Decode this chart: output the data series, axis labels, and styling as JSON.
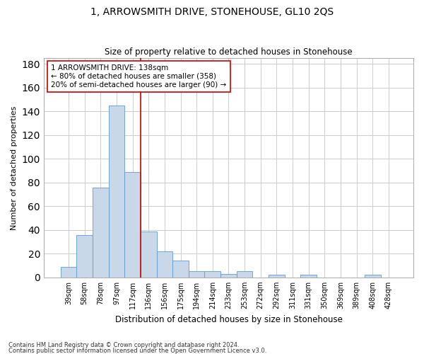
{
  "title": "1, ARROWSMITH DRIVE, STONEHOUSE, GL10 2QS",
  "subtitle": "Size of property relative to detached houses in Stonehouse",
  "xlabel": "Distribution of detached houses by size in Stonehouse",
  "ylabel": "Number of detached properties",
  "bar_color": "#c8d8e8",
  "bar_edge_color": "#5b9bd5",
  "vline_x": 4.5,
  "vline_color": "#cc0000",
  "annotation_text": "1 ARROWSMITH DRIVE: 138sqm\n← 80% of detached houses are smaller (358)\n20% of semi-detached houses are larger (90) →",
  "annotation_box_color": "#ffffff",
  "annotation_box_edge": "#cc0000",
  "categories": [
    "39sqm",
    "58sqm",
    "78sqm",
    "97sqm",
    "117sqm",
    "136sqm",
    "156sqm",
    "175sqm",
    "194sqm",
    "214sqm",
    "233sqm",
    "253sqm",
    "272sqm",
    "292sqm",
    "311sqm",
    "331sqm",
    "350sqm",
    "369sqm",
    "389sqm",
    "408sqm",
    "428sqm"
  ],
  "bar_heights": [
    9,
    36,
    76,
    145,
    89,
    39,
    22,
    14,
    5,
    5,
    3,
    5,
    0,
    2,
    0,
    2,
    0,
    0,
    0,
    2,
    0
  ],
  "ylim": [
    0,
    185
  ],
  "yticks": [
    0,
    20,
    40,
    60,
    80,
    100,
    120,
    140,
    160,
    180
  ],
  "footnote1": "Contains HM Land Registry data © Crown copyright and database right 2024.",
  "footnote2": "Contains public sector information licensed under the Open Government Licence v3.0.",
  "bg_color": "#ffffff",
  "grid_color": "#cccccc",
  "figsize": [
    6.0,
    5.0
  ],
  "dpi": 100
}
